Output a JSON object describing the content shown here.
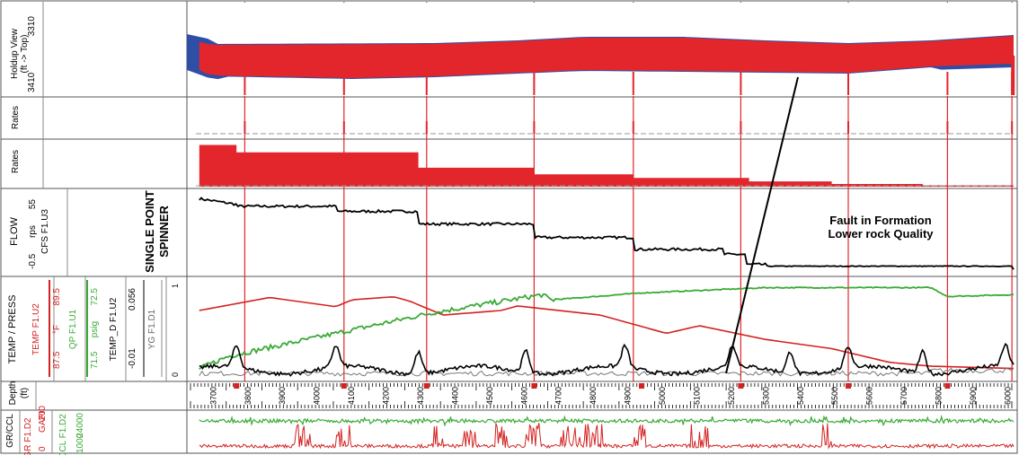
{
  "chart_data": {
    "type": "line",
    "tracks": {
      "hvt": {
        "name": "Holdup View",
        "unit": "(ft -> Top)",
        "scale_top": "3310",
        "scale_bottom": "3410",
        "colors": {
          "water": "#2f4ea6",
          "oil": "#e3262b"
        },
        "oil_top": [
          [
            0,
            42
          ],
          [
            0.03,
            48
          ],
          [
            0.3,
            47
          ],
          [
            0.4,
            44
          ],
          [
            0.48,
            40
          ],
          [
            0.6,
            40
          ],
          [
            0.7,
            44
          ],
          [
            0.8,
            47
          ],
          [
            0.9,
            44
          ],
          [
            1,
            38
          ]
        ],
        "oil_bottom": [
          [
            0,
            72
          ],
          [
            0.03,
            82
          ],
          [
            0.2,
            85
          ],
          [
            0.3,
            83
          ],
          [
            0.4,
            79
          ],
          [
            0.48,
            76
          ],
          [
            0.6,
            77
          ],
          [
            0.8,
            79
          ],
          [
            0.9,
            72
          ],
          [
            1,
            69
          ]
        ]
      },
      "rates1": {
        "label": "Rates"
      },
      "rates2": {
        "label": "Rates",
        "steps": [
          [
            0,
            0.95
          ],
          [
            0.06,
            0.78
          ],
          [
            0.28,
            0.43
          ],
          [
            0.42,
            0.28
          ],
          [
            0.54,
            0.2
          ],
          [
            0.68,
            0.12
          ],
          [
            0.78,
            0.06
          ],
          [
            0.89,
            0.03
          ],
          [
            1,
            0.03
          ]
        ]
      },
      "flow": {
        "label": "FLOW",
        "curve": "CFS F1.U3",
        "unit": "rps",
        "min": "-0.5",
        "max": "55",
        "title_line1": "SINGLE POINT",
        "title_line2": "SPINNER",
        "steps": [
          [
            0,
            0.9
          ],
          [
            0.06,
            0.81
          ],
          [
            0.18,
            0.75
          ],
          [
            0.28,
            0.6
          ],
          [
            0.42,
            0.44
          ],
          [
            0.54,
            0.3
          ],
          [
            0.65,
            0.24
          ],
          [
            0.675,
            0.12
          ],
          [
            0.7,
            0.1
          ],
          [
            1,
            0.06
          ]
        ]
      },
      "temp": {
        "label": "TEMP / PRESS",
        "temp_curve": "TEMP F1.U2",
        "temp_unit": "°F",
        "temp_min": "87.5",
        "temp_max": "89.5",
        "qp_curve": "QP F1.U1",
        "qp_unit": "psig",
        "qp_min": "71.5",
        "qp_max": "72.5",
        "tempd_curve": "TEMP_D F1.U2",
        "tempd_min": "-0.01",
        "tempd_max": "0.056",
        "yg_curve": "YG F1.D1",
        "yg_min": "0",
        "yg_max": "1",
        "red_curve": [
          [
            0,
            0.75
          ],
          [
            0.1,
            0.95
          ],
          [
            0.18,
            0.83
          ],
          [
            0.2,
            0.92
          ],
          [
            0.25,
            0.96
          ],
          [
            0.27,
            0.9
          ],
          [
            0.31,
            0.72
          ],
          [
            0.38,
            0.78
          ],
          [
            0.4,
            0.84
          ],
          [
            0.5,
            0.72
          ],
          [
            0.58,
            0.48
          ],
          [
            0.62,
            0.58
          ],
          [
            0.7,
            0.4
          ],
          [
            0.78,
            0.28
          ],
          [
            0.85,
            0.1
          ],
          [
            0.9,
            0.05
          ],
          [
            1,
            0.02
          ]
        ],
        "green_curve": [
          [
            0,
            0
          ],
          [
            0.05,
            0.2
          ],
          [
            0.3,
            0.7
          ],
          [
            0.43,
            0.9
          ],
          [
            0.44,
            0.84
          ],
          [
            0.55,
            0.92
          ],
          [
            0.7,
            0.98
          ],
          [
            0.9,
            0.98
          ],
          [
            0.92,
            0.88
          ],
          [
            1,
            0.9
          ]
        ],
        "black_peaks": [
          0.06,
          0.18,
          0.28,
          0.41,
          0.53,
          0.66,
          0.73,
          0.8,
          0.89,
          0.99
        ]
      },
      "depth": {
        "label": "Depth",
        "unit": "(ft)",
        "ticks": [
          "3700",
          "3800",
          "3900",
          "4000",
          "4100",
          "4200",
          "4300",
          "4400",
          "4500",
          "4600",
          "4700",
          "4800",
          "4900",
          "5000",
          "5100",
          "5200",
          "5300",
          "5400",
          "5500",
          "5600",
          "5700",
          "5800",
          "5900",
          "6000"
        ],
        "markers": [
          0.06,
          0.19,
          0.29,
          0.42,
          0.55,
          0.67,
          0.8,
          0.92
        ]
      },
      "gr": {
        "label": "GR/CCL",
        "gr_curve": "GR F1.D2",
        "gr_unit": "GAPI",
        "gr_min": "0",
        "gr_max": "200",
        "ccl_curve": "CCL F1.D2",
        "ccl_min": "1000",
        "ccl_max": "24000",
        "colors": {
          "gr": "#d42121",
          "ccl": "#3aaa35"
        }
      }
    },
    "annotation": {
      "line1": "Fault in Formation",
      "line2": "Lower rock Quality"
    },
    "gridlines": [
      0.07,
      0.19,
      0.29,
      0.42,
      0.54,
      0.67,
      0.8,
      0.92,
      0.998
    ]
  }
}
